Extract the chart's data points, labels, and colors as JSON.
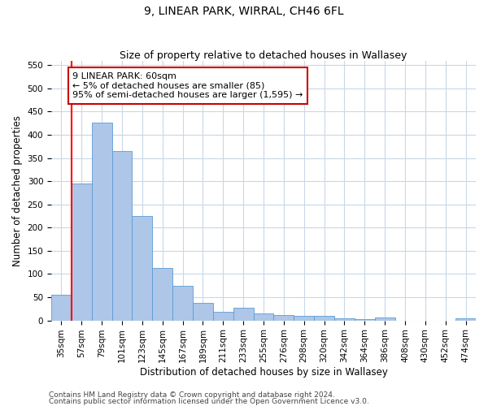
{
  "title": "9, LINEAR PARK, WIRRAL, CH46 6FL",
  "subtitle": "Size of property relative to detached houses in Wallasey",
  "xlabel": "Distribution of detached houses by size in Wallasey",
  "ylabel": "Number of detached properties",
  "categories": [
    "35sqm",
    "57sqm",
    "79sqm",
    "101sqm",
    "123sqm",
    "145sqm",
    "167sqm",
    "189sqm",
    "211sqm",
    "233sqm",
    "255sqm",
    "276sqm",
    "298sqm",
    "320sqm",
    "342sqm",
    "364sqm",
    "386sqm",
    "408sqm",
    "430sqm",
    "452sqm",
    "474sqm"
  ],
  "values": [
    55,
    295,
    427,
    365,
    225,
    113,
    75,
    38,
    18,
    27,
    15,
    11,
    10,
    10,
    5,
    3,
    6,
    0,
    0,
    0,
    5
  ],
  "bar_color": "#aec6e8",
  "bar_edge_color": "#5b9bd5",
  "annotation_text": "9 LINEAR PARK: 60sqm\n← 5% of detached houses are smaller (85)\n95% of semi-detached houses are larger (1,595) →",
  "annotation_box_color": "#ffffff",
  "annotation_box_edge": "#cc0000",
  "ylim": [
    0,
    560
  ],
  "yticks": [
    0,
    50,
    100,
    150,
    200,
    250,
    300,
    350,
    400,
    450,
    500,
    550
  ],
  "footer1": "Contains HM Land Registry data © Crown copyright and database right 2024.",
  "footer2": "Contains public sector information licensed under the Open Government Licence v3.0.",
  "bg_color": "#ffffff",
  "grid_color": "#c8d8e8",
  "title_fontsize": 10,
  "subtitle_fontsize": 9,
  "axis_label_fontsize": 8.5,
  "tick_fontsize": 7.5,
  "annotation_fontsize": 8,
  "footer_fontsize": 6.5
}
